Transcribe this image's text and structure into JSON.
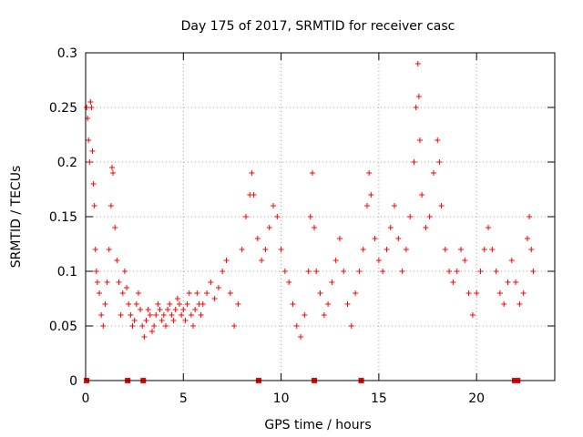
{
  "chart_data": {
    "type": "scatter",
    "title": "Day 175 of 2017, SRMTID for receiver casc",
    "xlabel": "GPS time / hours",
    "ylabel": "SRMTID / TECUs",
    "xlim": [
      0,
      24
    ],
    "ylim": [
      0,
      0.3
    ],
    "xticks": [
      "0",
      "5",
      "10",
      "15",
      "20"
    ],
    "yticks": [
      "0",
      "0.05",
      "0.1",
      "0.15",
      "0.2",
      "0.25",
      "0.3"
    ],
    "grid": true,
    "marker": "plus",
    "color": "#ff0000",
    "zero_markers_x": [
      0.05,
      2.15,
      2.95,
      8.85,
      11.7,
      14.1,
      21.95,
      22.1
    ],
    "series": [
      {
        "name": "SRMTID",
        "points": [
          [
            0.05,
            0.25
          ],
          [
            0.1,
            0.24
          ],
          [
            0.15,
            0.22
          ],
          [
            0.2,
            0.2
          ],
          [
            0.25,
            0.255
          ],
          [
            0.3,
            0.25
          ],
          [
            0.35,
            0.21
          ],
          [
            0.4,
            0.18
          ],
          [
            0.45,
            0.16
          ],
          [
            0.5,
            0.12
          ],
          [
            0.55,
            0.1
          ],
          [
            0.6,
            0.09
          ],
          [
            0.7,
            0.08
          ],
          [
            0.8,
            0.06
          ],
          [
            0.9,
            0.05
          ],
          [
            1.0,
            0.07
          ],
          [
            1.1,
            0.09
          ],
          [
            1.2,
            0.12
          ],
          [
            1.3,
            0.16
          ],
          [
            1.35,
            0.195
          ],
          [
            1.4,
            0.19
          ],
          [
            1.5,
            0.14
          ],
          [
            1.6,
            0.11
          ],
          [
            1.7,
            0.09
          ],
          [
            1.8,
            0.06
          ],
          [
            1.9,
            0.08
          ],
          [
            2.0,
            0.1
          ],
          [
            2.1,
            0.085
          ],
          [
            2.2,
            0.07
          ],
          [
            2.3,
            0.06
          ],
          [
            2.4,
            0.05
          ],
          [
            2.5,
            0.055
          ],
          [
            2.6,
            0.07
          ],
          [
            2.7,
            0.08
          ],
          [
            2.8,
            0.065
          ],
          [
            2.9,
            0.05
          ],
          [
            3.0,
            0.04
          ],
          [
            3.1,
            0.055
          ],
          [
            3.2,
            0.065
          ],
          [
            3.3,
            0.06
          ],
          [
            3.4,
            0.045
          ],
          [
            3.5,
            0.05
          ],
          [
            3.6,
            0.06
          ],
          [
            3.7,
            0.07
          ],
          [
            3.8,
            0.065
          ],
          [
            3.9,
            0.055
          ],
          [
            4.0,
            0.06
          ],
          [
            4.1,
            0.05
          ],
          [
            4.2,
            0.065
          ],
          [
            4.3,
            0.07
          ],
          [
            4.4,
            0.06
          ],
          [
            4.5,
            0.055
          ],
          [
            4.6,
            0.065
          ],
          [
            4.7,
            0.075
          ],
          [
            4.8,
            0.07
          ],
          [
            4.9,
            0.06
          ],
          [
            5.0,
            0.065
          ],
          [
            5.1,
            0.055
          ],
          [
            5.2,
            0.07
          ],
          [
            5.3,
            0.08
          ],
          [
            5.4,
            0.06
          ],
          [
            5.5,
            0.05
          ],
          [
            5.6,
            0.065
          ],
          [
            5.7,
            0.08
          ],
          [
            5.8,
            0.07
          ],
          [
            5.9,
            0.06
          ],
          [
            6.0,
            0.07
          ],
          [
            6.2,
            0.08
          ],
          [
            6.4,
            0.09
          ],
          [
            6.6,
            0.075
          ],
          [
            6.8,
            0.085
          ],
          [
            7.0,
            0.1
          ],
          [
            7.2,
            0.11
          ],
          [
            7.4,
            0.08
          ],
          [
            7.6,
            0.05
          ],
          [
            7.8,
            0.07
          ],
          [
            8.0,
            0.12
          ],
          [
            8.2,
            0.15
          ],
          [
            8.4,
            0.17
          ],
          [
            8.5,
            0.19
          ],
          [
            8.6,
            0.17
          ],
          [
            8.8,
            0.13
          ],
          [
            9.0,
            0.11
          ],
          [
            9.2,
            0.12
          ],
          [
            9.4,
            0.14
          ],
          [
            9.6,
            0.16
          ],
          [
            9.8,
            0.15
          ],
          [
            10.0,
            0.12
          ],
          [
            10.2,
            0.1
          ],
          [
            10.4,
            0.09
          ],
          [
            10.6,
            0.07
          ],
          [
            10.8,
            0.05
          ],
          [
            11.0,
            0.04
          ],
          [
            11.2,
            0.06
          ],
          [
            11.4,
            0.1
          ],
          [
            11.5,
            0.15
          ],
          [
            11.6,
            0.19
          ],
          [
            11.7,
            0.14
          ],
          [
            11.8,
            0.1
          ],
          [
            12.0,
            0.08
          ],
          [
            12.2,
            0.06
          ],
          [
            12.4,
            0.07
          ],
          [
            12.6,
            0.09
          ],
          [
            12.8,
            0.11
          ],
          [
            13.0,
            0.13
          ],
          [
            13.2,
            0.1
          ],
          [
            13.4,
            0.07
          ],
          [
            13.6,
            0.05
          ],
          [
            13.8,
            0.08
          ],
          [
            14.0,
            0.1
          ],
          [
            14.2,
            0.12
          ],
          [
            14.4,
            0.16
          ],
          [
            14.5,
            0.19
          ],
          [
            14.6,
            0.17
          ],
          [
            14.8,
            0.13
          ],
          [
            15.0,
            0.11
          ],
          [
            15.2,
            0.1
          ],
          [
            15.4,
            0.12
          ],
          [
            15.6,
            0.14
          ],
          [
            15.8,
            0.16
          ],
          [
            16.0,
            0.13
          ],
          [
            16.2,
            0.1
          ],
          [
            16.4,
            0.12
          ],
          [
            16.6,
            0.15
          ],
          [
            16.8,
            0.2
          ],
          [
            16.9,
            0.25
          ],
          [
            17.0,
            0.29
          ],
          [
            17.05,
            0.26
          ],
          [
            17.1,
            0.22
          ],
          [
            17.2,
            0.17
          ],
          [
            17.4,
            0.14
          ],
          [
            17.6,
            0.15
          ],
          [
            17.8,
            0.19
          ],
          [
            18.0,
            0.22
          ],
          [
            18.1,
            0.2
          ],
          [
            18.2,
            0.16
          ],
          [
            18.4,
            0.12
          ],
          [
            18.6,
            0.1
          ],
          [
            18.8,
            0.09
          ],
          [
            19.0,
            0.1
          ],
          [
            19.2,
            0.12
          ],
          [
            19.4,
            0.11
          ],
          [
            19.6,
            0.08
          ],
          [
            19.8,
            0.06
          ],
          [
            20.0,
            0.08
          ],
          [
            20.2,
            0.1
          ],
          [
            20.4,
            0.12
          ],
          [
            20.6,
            0.14
          ],
          [
            20.8,
            0.12
          ],
          [
            21.0,
            0.1
          ],
          [
            21.2,
            0.08
          ],
          [
            21.4,
            0.07
          ],
          [
            21.6,
            0.09
          ],
          [
            21.8,
            0.11
          ],
          [
            22.0,
            0.09
          ],
          [
            22.2,
            0.07
          ],
          [
            22.4,
            0.08
          ],
          [
            22.6,
            0.13
          ],
          [
            22.7,
            0.15
          ],
          [
            22.8,
            0.12
          ],
          [
            22.9,
            0.1
          ]
        ]
      }
    ]
  }
}
